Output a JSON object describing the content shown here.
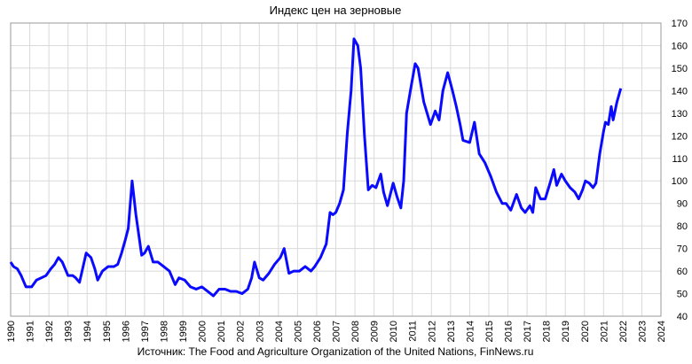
{
  "chart_data": {
    "type": "line",
    "title": "Индекс цен на зерновые",
    "source": "Источник: The Food and Agriculture Organization of the United Nations, FinNews.ru",
    "color": "#0a0aff",
    "grid": true,
    "xlim": [
      1990,
      2024
    ],
    "xticks": [
      1990,
      1991,
      1992,
      1993,
      1994,
      1995,
      1996,
      1997,
      1998,
      1999,
      2000,
      2001,
      2002,
      2003,
      2004,
      2005,
      2006,
      2007,
      2008,
      2009,
      2010,
      2011,
      2012,
      2013,
      2014,
      2015,
      2016,
      2017,
      2018,
      2019,
      2020,
      2021,
      2022,
      2023,
      2024
    ],
    "ylim": [
      40,
      170
    ],
    "yticks": [
      40,
      50,
      60,
      70,
      80,
      90,
      100,
      110,
      120,
      130,
      140,
      150,
      160,
      170
    ],
    "x": [
      1990.0,
      1990.15,
      1990.35,
      1990.55,
      1990.8,
      1991.1,
      1991.35,
      1991.6,
      1991.85,
      1992.1,
      1992.3,
      1992.5,
      1992.7,
      1993.0,
      1993.25,
      1993.4,
      1993.6,
      1993.95,
      1994.2,
      1994.4,
      1994.55,
      1994.8,
      1995.1,
      1995.4,
      1995.6,
      1995.8,
      1996.0,
      1996.15,
      1996.35,
      1996.55,
      1996.85,
      1997.0,
      1997.2,
      1997.45,
      1997.7,
      1998.0,
      1998.3,
      1998.6,
      1998.8,
      1999.1,
      1999.4,
      1999.7,
      2000.0,
      2000.3,
      2000.6,
      2000.9,
      2001.2,
      2001.5,
      2001.8,
      2002.1,
      2002.4,
      2002.6,
      2002.75,
      2003.0,
      2003.2,
      2003.5,
      2003.8,
      2004.1,
      2004.3,
      2004.55,
      2004.8,
      2005.1,
      2005.4,
      2005.7,
      2005.9,
      2006.2,
      2006.5,
      2006.7,
      2006.85,
      2007.0,
      2007.2,
      2007.4,
      2007.6,
      2007.8,
      2007.95,
      2008.15,
      2008.3,
      2008.5,
      2008.7,
      2008.9,
      2009.1,
      2009.35,
      2009.5,
      2009.7,
      2010.0,
      2010.2,
      2010.4,
      2010.55,
      2010.7,
      2010.9,
      2011.15,
      2011.3,
      2011.4,
      2011.6,
      2011.95,
      2012.2,
      2012.4,
      2012.6,
      2012.85,
      2013.1,
      2013.3,
      2013.5,
      2013.65,
      2014.0,
      2014.25,
      2014.5,
      2014.8,
      2015.1,
      2015.4,
      2015.7,
      2015.9,
      2016.15,
      2016.45,
      2016.7,
      2016.9,
      2017.15,
      2017.3,
      2017.45,
      2017.7,
      2017.95,
      2018.2,
      2018.4,
      2018.55,
      2018.8,
      2019.0,
      2019.25,
      2019.5,
      2019.7,
      2019.9,
      2020.05,
      2020.25,
      2020.45,
      2020.6,
      2020.8,
      2021.0,
      2021.1,
      2021.25,
      2021.4,
      2021.5,
      2021.7,
      2021.9
    ],
    "values": [
      64,
      62,
      61,
      58,
      53,
      53,
      56,
      57,
      58,
      61,
      63,
      66,
      64,
      58,
      58,
      57,
      55,
      68,
      66,
      61,
      56,
      60,
      62,
      62,
      63,
      68,
      74,
      79,
      100,
      85,
      67,
      68,
      71,
      64,
      64,
      62,
      60,
      54,
      57,
      56,
      53,
      52,
      53,
      51,
      49,
      52,
      52,
      51,
      51,
      50,
      52,
      57,
      64,
      57,
      56,
      59,
      63,
      66,
      70,
      59,
      60,
      60,
      62,
      60,
      62,
      66,
      72,
      86,
      85,
      86,
      90,
      96,
      121,
      140,
      163,
      160,
      150,
      120,
      96,
      98,
      97,
      103,
      95,
      89,
      99,
      93,
      88,
      100,
      130,
      140,
      152,
      150,
      145,
      135,
      125,
      131,
      127,
      140,
      148,
      140,
      133,
      125,
      118,
      117,
      126,
      112,
      108,
      102,
      95,
      90,
      90,
      87,
      94,
      88,
      86,
      89,
      86,
      97,
      92,
      92,
      99,
      105,
      98,
      103,
      100,
      97,
      95,
      92,
      96,
      100,
      99,
      97,
      99,
      112,
      122,
      126,
      125,
      133,
      127,
      135,
      141
    ]
  }
}
